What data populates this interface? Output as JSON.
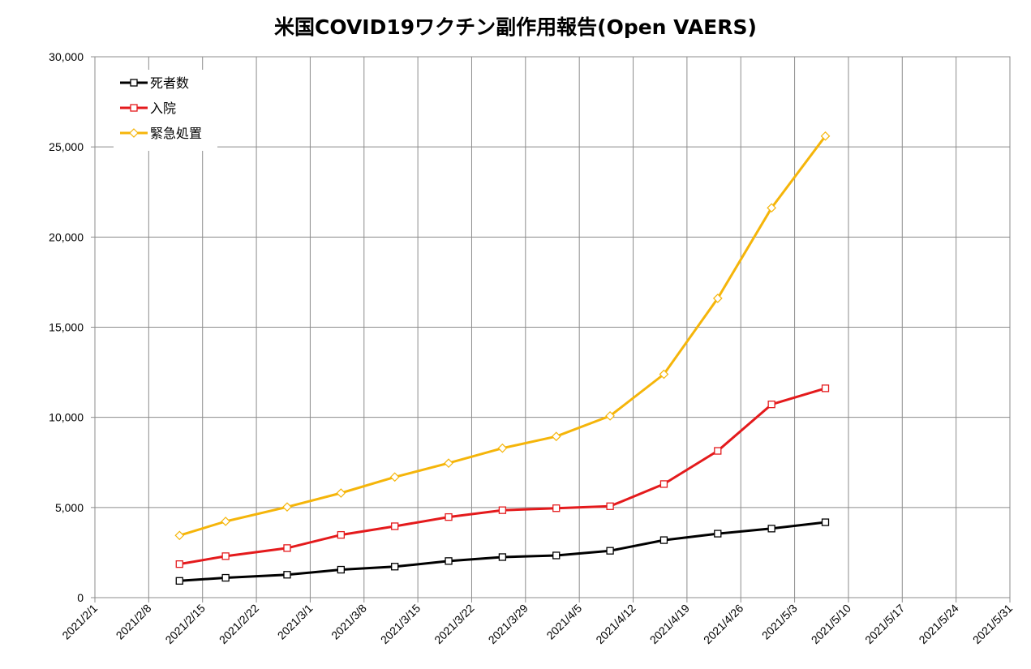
{
  "chart_data": {
    "type": "line",
    "title": "米国COVID19ワクチン副作用報告(Open VAERS)",
    "xlabel": "",
    "ylabel": "",
    "x_axis": {
      "type": "date",
      "range": [
        "2021/2/1",
        "2021/5/31"
      ],
      "tick_labels": [
        "2021/2/1",
        "2021/2/8",
        "2021/2/15",
        "2021/2/22",
        "2021/3/1",
        "2021/3/8",
        "2021/3/15",
        "2021/3/22",
        "2021/3/29",
        "2021/4/5",
        "2021/4/12",
        "2021/4/19",
        "2021/4/26",
        "2021/5/3",
        "2021/5/10",
        "2021/5/17",
        "2021/5/24",
        "2021/5/31"
      ]
    },
    "ylim": [
      0,
      30000
    ],
    "y_tick_labels": [
      "0",
      "5,000",
      "10,000",
      "15,000",
      "20,000",
      "25,000",
      "30,000"
    ],
    "grid": true,
    "legend_position": "top-left",
    "x": [
      "2021/2/12",
      "2021/2/18",
      "2021/2/26",
      "2021/3/5",
      "2021/3/12",
      "2021/3/19",
      "2021/3/26",
      "2021/4/2",
      "2021/4/9",
      "2021/4/16",
      "2021/4/23",
      "2021/4/30",
      "2021/5/7"
    ],
    "series": [
      {
        "name": "死者数",
        "color": "#000000",
        "marker": "square",
        "values": [
          930,
          1100,
          1270,
          1550,
          1720,
          2030,
          2250,
          2340,
          2600,
          3190,
          3550,
          3830,
          4180
        ]
      },
      {
        "name": "入院",
        "color": "#e41a1c",
        "marker": "square",
        "values": [
          1860,
          2300,
          2750,
          3480,
          3960,
          4470,
          4850,
          4960,
          5070,
          6300,
          8140,
          10720,
          11610
        ]
      },
      {
        "name": "緊急処置",
        "color": "#f5b50a",
        "marker": "diamond",
        "values": [
          3450,
          4230,
          5030,
          5800,
          6690,
          7460,
          8290,
          8940,
          10080,
          12390,
          16600,
          21620,
          25600
        ]
      }
    ]
  }
}
